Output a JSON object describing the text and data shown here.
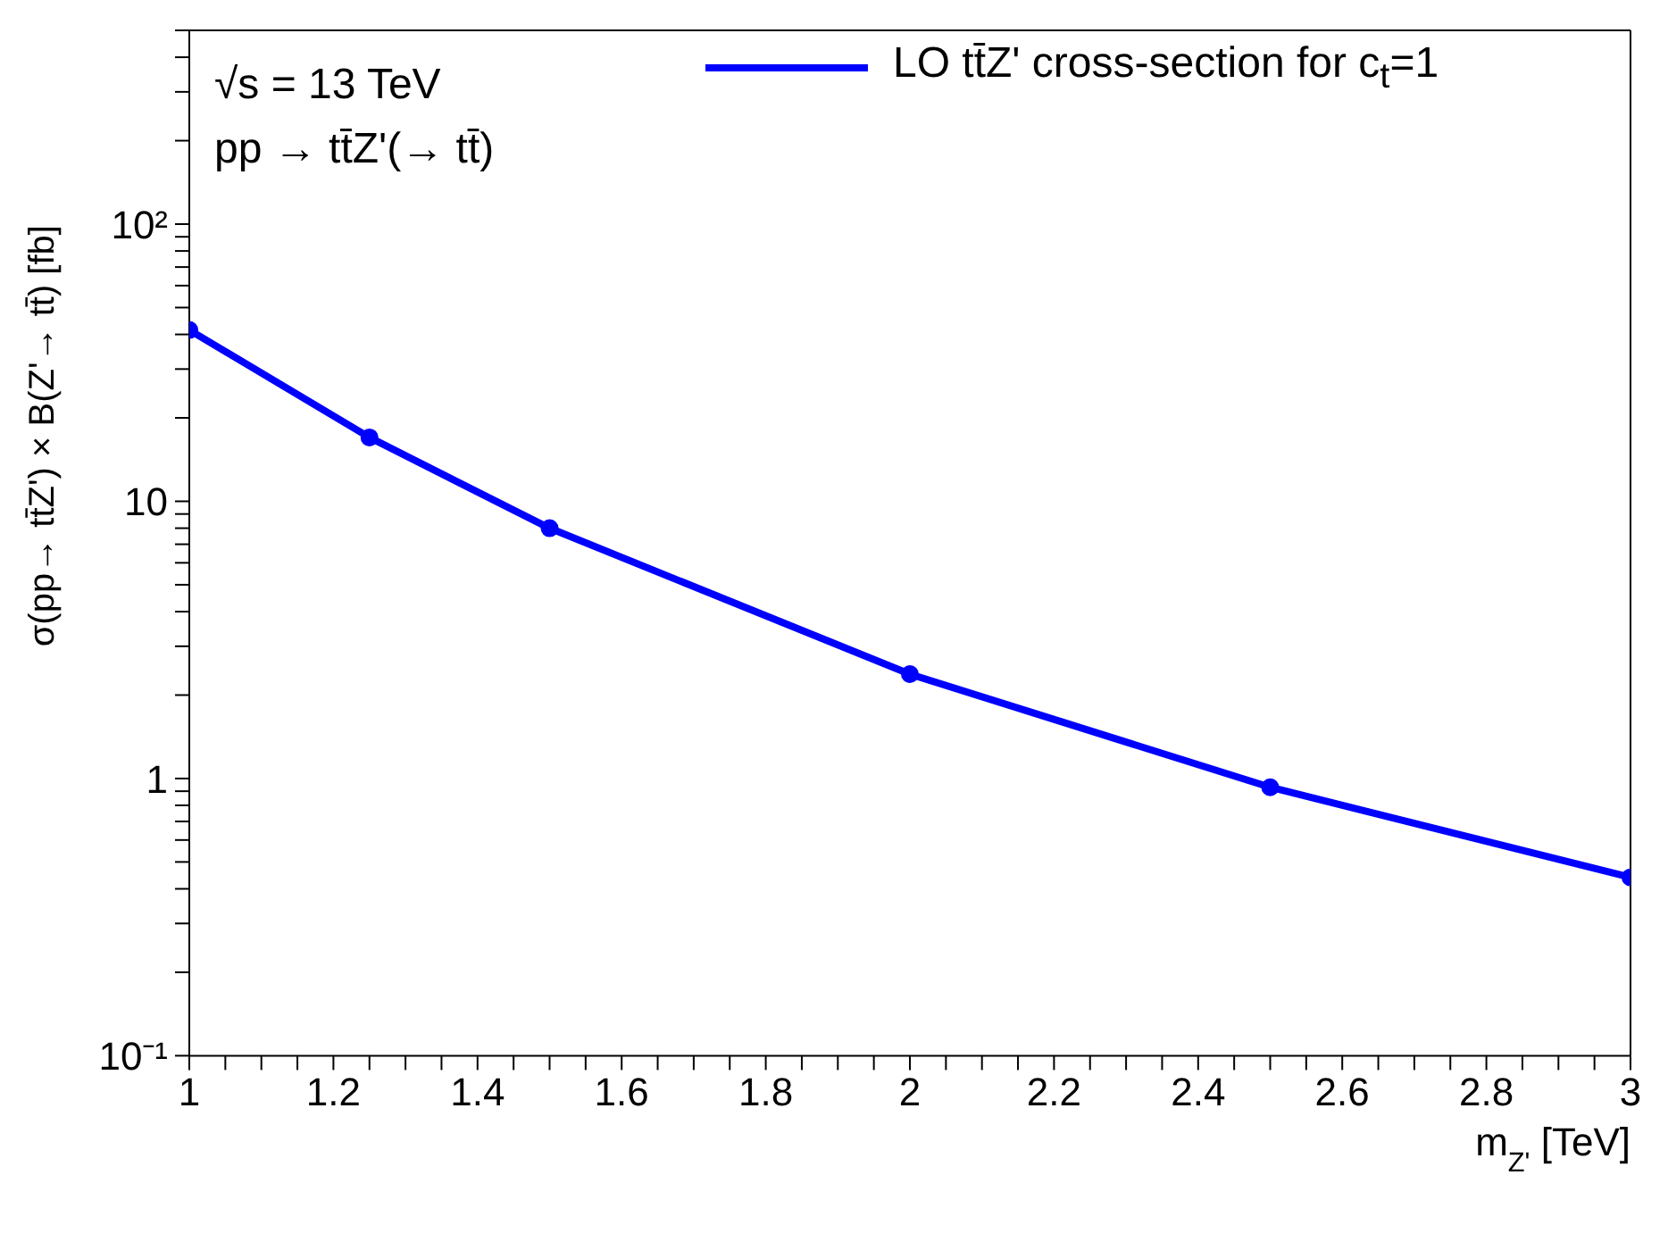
{
  "chart_data": {
    "type": "line",
    "xlabel": "m$_{Z'}$ [TeV]",
    "ylabel": "σ(pp→ tt̄Z') × B(Z'→ tt̄) [fb]",
    "annotations": [
      "√s = 13 TeV",
      "pp → tt̄Z'(→ tt̄)"
    ],
    "x": [
      1,
      1.25,
      1.5,
      2,
      2.5,
      3
    ],
    "series": [
      {
        "name": "LO tt̄Z' cross-section for c$_{t}$=1",
        "color": "#0000ff",
        "values": [
          41.5,
          17,
          8.0,
          2.38,
          0.93,
          0.44
        ]
      }
    ],
    "log": "y",
    "xlim": [
      1,
      3
    ],
    "xticks": [
      1,
      {
        "value": 1.05,
        "label": null
      },
      {
        "value": 1.1,
        "label": null
      },
      {
        "value": 1.15,
        "label": null
      },
      1.2,
      {
        "value": 1.25,
        "label": null
      },
      {
        "value": 1.3,
        "label": null
      },
      {
        "value": 1.35,
        "label": null
      },
      1.4,
      {
        "value": 1.45,
        "label": null
      },
      {
        "value": 1.5,
        "label": null
      },
      {
        "value": 1.55,
        "label": null
      },
      1.6,
      {
        "value": 1.65,
        "label": null
      },
      {
        "value": 1.7,
        "label": null
      },
      {
        "value": 1.75,
        "label": null
      },
      1.8,
      {
        "value": 1.85,
        "label": null
      },
      {
        "value": 1.9,
        "label": null
      },
      {
        "value": 1.95,
        "label": null
      },
      2,
      {
        "value": 2.05,
        "label": null
      },
      {
        "value": 2.1,
        "label": null
      },
      {
        "value": 2.15,
        "label": null
      },
      2.2,
      {
        "value": 2.25,
        "label": null
      },
      {
        "value": 2.3,
        "label": null
      },
      {
        "value": 2.35,
        "label": null
      },
      2.4,
      {
        "value": 2.45,
        "label": null
      },
      {
        "value": 2.5,
        "label": null
      },
      {
        "value": 2.55,
        "label": null
      },
      2.6,
      {
        "value": 2.65,
        "label": null
      },
      {
        "value": 2.7,
        "label": null
      },
      {
        "value": 2.75,
        "label": null
      },
      2.8,
      {
        "value": 2.85,
        "label": null
      },
      {
        "value": 2.9,
        "label": null
      },
      {
        "value": 2.95,
        "label": null
      },
      3
    ],
    "ylim": [
      0.1,
      500
    ],
    "yticks": [
      {
        "value": 0.1,
        "label": "10⁻¹"
      },
      {
        "value": 0.2,
        "label": null
      },
      {
        "value": 0.3,
        "label": null
      },
      {
        "value": 0.4,
        "label": null
      },
      {
        "value": 0.5,
        "label": null
      },
      {
        "value": 0.6,
        "label": null
      },
      {
        "value": 0.7,
        "label": null
      },
      {
        "value": 0.8,
        "label": null
      },
      {
        "value": 0.9,
        "label": null
      },
      1,
      {
        "value": 2,
        "label": null
      },
      {
        "value": 3,
        "label": null
      },
      {
        "value": 4,
        "label": null
      },
      {
        "value": 5,
        "label": null
      },
      {
        "value": 6,
        "label": null
      },
      {
        "value": 7,
        "label": null
      },
      {
        "value": 8,
        "label": null
      },
      {
        "value": 9,
        "label": null
      },
      10,
      {
        "value": 20,
        "label": null
      },
      {
        "value": 30,
        "label": null
      },
      {
        "value": 40,
        "label": null
      },
      {
        "value": 50,
        "label": null
      },
      {
        "value": 60,
        "label": null
      },
      {
        "value": 70,
        "label": null
      },
      {
        "value": 80,
        "label": null
      },
      {
        "value": 90,
        "label": null
      },
      {
        "value": 100,
        "label": "10²"
      },
      {
        "value": 200,
        "label": null
      },
      {
        "value": 300,
        "label": null
      },
      {
        "value": 400,
        "label": null
      },
      {
        "value": 500,
        "label": null
      }
    ],
    "marker": "circle",
    "line_style": "solid",
    "grid": false,
    "legend": "top right"
  }
}
